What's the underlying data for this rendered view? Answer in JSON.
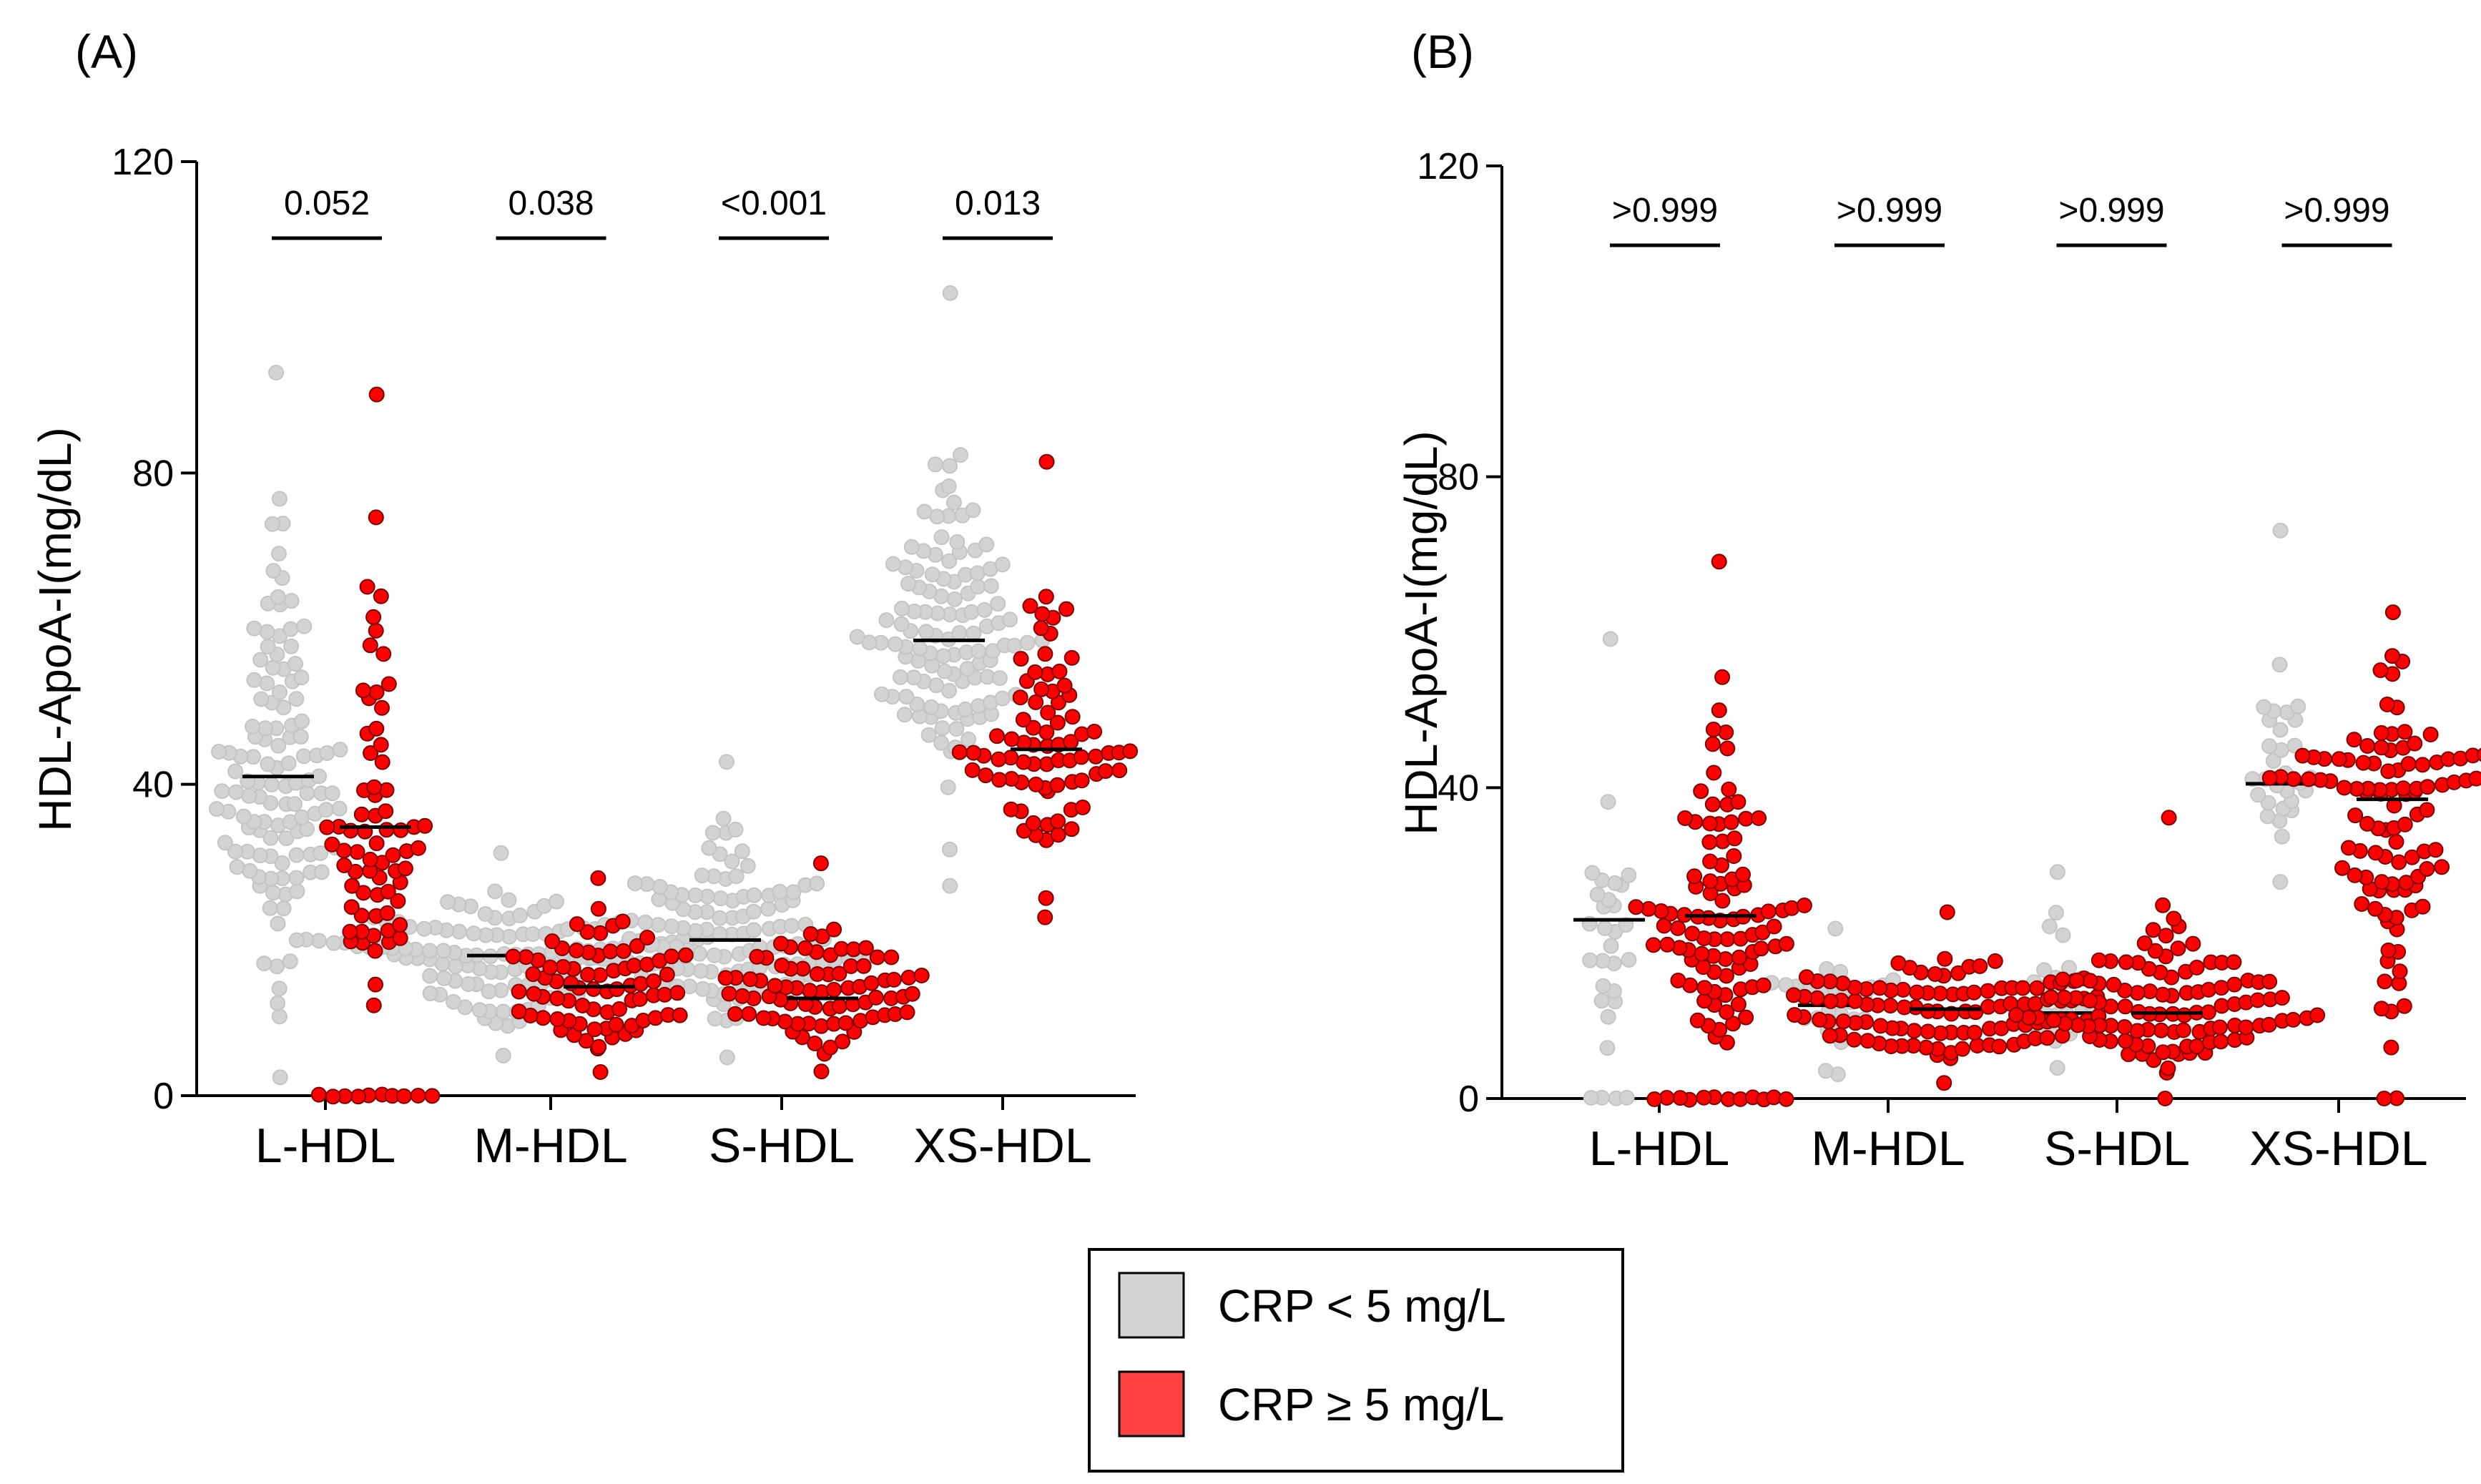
{
  "colors": {
    "low_crp": "#d3d3d3",
    "high_crp": "#ff0000",
    "high_crp_legend": "#ff4040",
    "median": "#000000"
  },
  "legend": {
    "items": [
      {
        "label": "CRP < 5 mg/L",
        "color": "#d3d3d3"
      },
      {
        "label": "CRP ≥ 5 mg/L",
        "color": "#ff4040"
      }
    ]
  },
  "chart_data": [
    {
      "type": "scatter",
      "panel_label": "(A)",
      "ylabel": "HDL-ApoA-I(mg/dL)",
      "ylim": [
        0,
        120
      ],
      "yticks": [
        "0",
        "40",
        "80",
        "120"
      ],
      "ytick_values": [
        0,
        40,
        80,
        120
      ],
      "categories": [
        "L-HDL",
        "M-HDL",
        "S-HDL",
        "XS-HDL"
      ],
      "pvalues": [
        "0.052",
        "0.038",
        "<0.001",
        "0.013"
      ],
      "series": [
        {
          "name": "CRP < 5 mg/L",
          "n": [
            120,
            120,
            120,
            120
          ],
          "medians": [
            41,
            18,
            20,
            58.5
          ],
          "min": [
            2.5,
            5,
            5,
            27
          ],
          "max": [
            93,
            31,
            43,
            103
          ],
          "zero_count": [
            0,
            0,
            0,
            0
          ]
        },
        {
          "name": "CRP ≥ 5 mg/L",
          "n": [
            80,
            80,
            80,
            80
          ],
          "medians": [
            34.5,
            14,
            12.5,
            44.5
          ],
          "min": [
            0,
            3,
            3,
            23
          ],
          "max": [
            90,
            28,
            30,
            81.5
          ],
          "zero_count": [
            10,
            0,
            0,
            0
          ]
        }
      ]
    },
    {
      "type": "scatter",
      "panel_label": "(B)",
      "ylabel": "HDL-ApoA-I(mg/dL)",
      "ylim": [
        0,
        120
      ],
      "yticks": [
        "0",
        "40",
        "80",
        "120"
      ],
      "ytick_values": [
        0,
        40,
        80,
        120
      ],
      "categories": [
        "L-HDL",
        "M-HDL",
        "S-HDL",
        "XS-HDL"
      ],
      "pvalues": [
        ">0.999",
        ">0.999",
        ">0.999",
        ">0.999"
      ],
      "series": [
        {
          "name": "CRP < 5 mg/L",
          "n": [
            30,
            30,
            30,
            30
          ],
          "medians": [
            23,
            12,
            11,
            40.5
          ],
          "min": [
            0,
            3,
            4,
            28
          ],
          "max": [
            59,
            22,
            29,
            73
          ],
          "zero_count": [
            4,
            0,
            0,
            0
          ]
        },
        {
          "name": "CRP ≥ 5 mg/L",
          "n": [
            110,
            110,
            110,
            110
          ],
          "medians": [
            23.5,
            11.5,
            11,
            38.5
          ],
          "min": [
            0,
            2,
            0,
            0
          ],
          "max": [
            69,
            24,
            36,
            62.5
          ],
          "zero_count": [
            12,
            0,
            1,
            2
          ]
        }
      ]
    }
  ]
}
